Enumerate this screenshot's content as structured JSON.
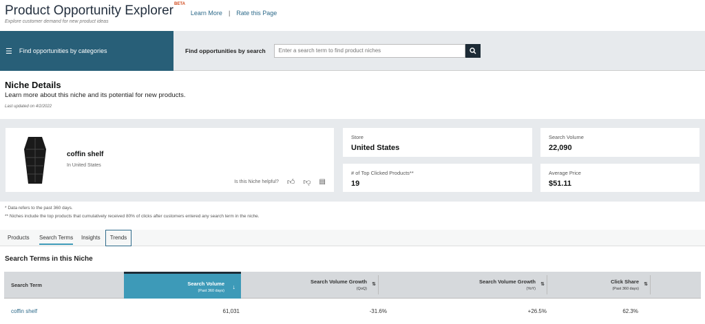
{
  "header": {
    "title": "Product Opportunity Explorer",
    "badge": "BETA",
    "learn_more": "Learn More",
    "separator": "|",
    "rate": "Rate this Page",
    "subtitle": "Explore customer demand for new product ideas"
  },
  "nav": {
    "categories_label": "Find opportunities by categories",
    "search_label": "Find opportunities by search",
    "search_placeholder": "Enter a search term to find product niches",
    "search_value": ""
  },
  "niche": {
    "heading": "Niche Details",
    "description": "Learn more about this niche and its potential for new products.",
    "updated": "Last updated on 4/2/2022",
    "name": "coffin shelf",
    "location": "In United States",
    "helpful_prompt": "Is this Niche helpful?"
  },
  "stats": [
    {
      "label": "Store",
      "value": "United States"
    },
    {
      "label": "Search Volume",
      "value": "22,090"
    },
    {
      "label": "# of Top Clicked Products**",
      "value": "19"
    },
    {
      "label": "Average Price",
      "value": "$51.11"
    }
  ],
  "notes": [
    "* Data refers to the past 360 days.",
    "** Niches include the top products that cumulatively received 80% of clicks after customers entered any search term in the niche."
  ],
  "tabs": [
    {
      "label": "Products"
    },
    {
      "label": "Search Terms",
      "active": true
    },
    {
      "label": "Insights"
    },
    {
      "label": "Trends",
      "focused": true
    }
  ],
  "table": {
    "heading": "Search Terms in this Niche",
    "columns": [
      {
        "label": "Search Term",
        "sub": ""
      },
      {
        "label": "Search Volume",
        "sub": "(Past 360 days)",
        "sort": "↓"
      },
      {
        "label": "Search Volume Growth",
        "sub": "(QoQ)",
        "sort": "⇅"
      },
      {
        "label": "Search Volume Growth",
        "sub": "(YoY)",
        "sort": "⇅"
      },
      {
        "label": "Click Share",
        "sub": "(Past 360 days)",
        "sort": "⇅"
      }
    ],
    "rows": [
      [
        "coffin shelf",
        "61,031",
        "-31.6%",
        "+26.5%",
        "62.3%"
      ]
    ]
  },
  "colors": {
    "nav": "#285f78",
    "active_column": "#3d9ab8",
    "link": "#2d6a8a"
  }
}
